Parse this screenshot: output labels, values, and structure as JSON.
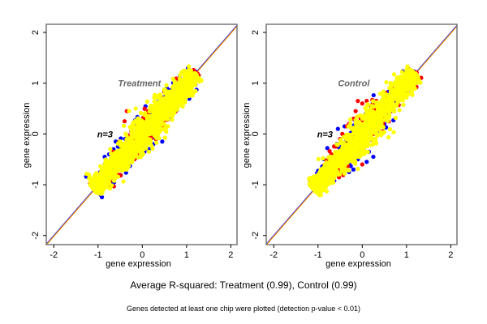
{
  "chart_data": [
    {
      "type": "scatter",
      "title": "Treatment",
      "annotation": "n=3",
      "xlabel": "gene expression",
      "ylabel": "gene expression",
      "xlim": [
        -2.17,
        2.14
      ],
      "ylim": [
        -2.18,
        2.16
      ],
      "xticks": [
        -2,
        -1,
        0,
        1,
        2
      ],
      "yticks": [
        -2,
        -1,
        0,
        1,
        2
      ],
      "reference_line": {
        "slope": 1,
        "intercept": 0,
        "colors": [
          "#0000ff",
          "#ff9900"
        ]
      },
      "series": [
        {
          "name": "blue",
          "color": "#0000ff",
          "points": [
            [
              -1.05,
              -0.95
            ],
            [
              -0.95,
              -0.75
            ],
            [
              -0.85,
              -0.6
            ],
            [
              -0.75,
              -0.4
            ],
            [
              -0.65,
              -0.3
            ],
            [
              -0.6,
              -0.15
            ],
            [
              -0.55,
              -0.25
            ],
            [
              -0.45,
              -0.2
            ],
            [
              -0.85,
              -0.45
            ],
            [
              0.35,
              0.0
            ],
            [
              0.45,
              -0.15
            ],
            [
              0.25,
              -0.2
            ],
            [
              0.15,
              -0.3
            ],
            [
              0.6,
              0.3
            ],
            [
              0.7,
              0.45
            ],
            [
              0.8,
              0.55
            ],
            [
              -0.3,
              -0.55
            ],
            [
              -0.15,
              -0.45
            ],
            [
              0.05,
              -0.35
            ],
            [
              1.0,
              0.95
            ],
            [
              0.9,
              0.8
            ],
            [
              -0.95,
              -1.1
            ]
          ]
        },
        {
          "name": "red",
          "color": "#ff0000",
          "points": [
            [
              -0.35,
              0.45
            ],
            [
              -0.4,
              0.25
            ],
            [
              -0.65,
              -0.35
            ],
            [
              -0.25,
              0.05
            ],
            [
              0.5,
              0.3
            ],
            [
              0.6,
              0.4
            ],
            [
              0.85,
              0.75
            ],
            [
              0.2,
              -0.1
            ],
            [
              -0.9,
              -1.0
            ],
            [
              -0.55,
              -0.55
            ],
            [
              -0.1,
              -0.4
            ],
            [
              1.1,
              1.1
            ],
            [
              -0.75,
              -0.75
            ],
            [
              0.3,
              0.2
            ]
          ]
        },
        {
          "name": "yellow",
          "color": "#ffff00",
          "points": []
        }
      ]
    },
    {
      "type": "scatter",
      "title": "Control",
      "annotation": "n=3",
      "xlabel": "gene expression",
      "ylabel": "gene expression",
      "xlim": [
        -2.17,
        2.14
      ],
      "ylim": [
        -2.18,
        2.16
      ],
      "xticks": [
        -2,
        -1,
        0,
        1,
        2
      ],
      "yticks": [
        -2,
        -1,
        0,
        1,
        2
      ],
      "reference_line": {
        "slope": 1,
        "intercept": 0,
        "colors": [
          "#0000ff",
          "#ff9900"
        ]
      },
      "series": [
        {
          "name": "blue",
          "color": "#0000ff",
          "points": [
            [
              -0.55,
              0.1
            ],
            [
              -0.4,
              0.15
            ],
            [
              0.15,
              -0.35
            ],
            [
              0.25,
              -0.45
            ],
            [
              0.1,
              -0.55
            ],
            [
              -0.2,
              -0.7
            ],
            [
              -0.3,
              -0.75
            ],
            [
              0.4,
              0.05
            ],
            [
              0.5,
              0.2
            ],
            [
              0.6,
              0.4
            ],
            [
              0.75,
              0.6
            ],
            [
              0.85,
              0.75
            ],
            [
              1.0,
              0.95
            ],
            [
              -1.05,
              -1.1
            ],
            [
              -0.85,
              -0.95
            ],
            [
              -0.6,
              -0.7
            ],
            [
              0.3,
              -0.15
            ],
            [
              -0.1,
              -0.5
            ]
          ]
        },
        {
          "name": "red",
          "color": "#ff0000",
          "points": [
            [
              -0.1,
              0.65
            ],
            [
              0.0,
              0.6
            ],
            [
              0.1,
              0.65
            ],
            [
              -0.15,
              0.45
            ],
            [
              -0.2,
              0.3
            ],
            [
              -0.35,
              0.15
            ],
            [
              -0.45,
              0.0
            ],
            [
              -0.5,
              -0.1
            ],
            [
              -0.6,
              -0.25
            ],
            [
              -0.7,
              -0.4
            ],
            [
              0.2,
              0.55
            ],
            [
              0.3,
              0.6
            ],
            [
              0.4,
              0.5
            ],
            [
              0.55,
              0.7
            ],
            [
              0.65,
              0.85
            ],
            [
              -0.7,
              -0.6
            ],
            [
              -0.0,
              -0.6
            ],
            [
              0.1,
              -0.15
            ],
            [
              0.2,
              -0.05
            ],
            [
              0.35,
              0.3
            ],
            [
              -0.3,
              0.2
            ],
            [
              -0.05,
              0.35
            ]
          ]
        },
        {
          "name": "yellow",
          "color": "#ffff00",
          "points": []
        }
      ]
    }
  ],
  "footer": {
    "main": "Average R-squared: Treatment (0.99), Control (0.99)",
    "note": "Genes detected at least one chip were plotted (detection p-value < 0.01)"
  }
}
